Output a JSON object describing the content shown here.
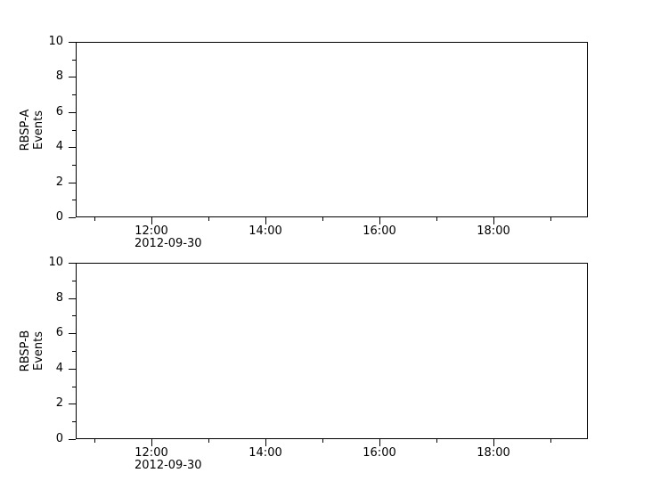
{
  "page": {
    "background": "#ffffff",
    "foreground": "#000000"
  },
  "chart_data": [
    {
      "type": "line",
      "panel_id": "rbsp-a",
      "ylabel_lines": [
        "RBSP-A",
        "Events"
      ],
      "ylim": [
        0,
        10
      ],
      "y_major_ticks": [
        0,
        2,
        4,
        6,
        8,
        10
      ],
      "y_minor_ticks": [
        1,
        3,
        5,
        7,
        9
      ],
      "grid": false,
      "x_axis": {
        "date_label": "2012-09-30",
        "start_hour": 10.67,
        "end_hour": 19.65,
        "major_ticks": [
          {
            "hour": 12,
            "label": "12:00"
          },
          {
            "hour": 14,
            "label": "14:00"
          },
          {
            "hour": 16,
            "label": "16:00"
          },
          {
            "hour": 18,
            "label": "18:00"
          }
        ],
        "minor_tick_hours": [
          11,
          13,
          15,
          17,
          19
        ]
      },
      "series": []
    },
    {
      "type": "line",
      "panel_id": "rbsp-b",
      "ylabel_lines": [
        "RBSP-B",
        "Events"
      ],
      "ylim": [
        0,
        10
      ],
      "y_major_ticks": [
        0,
        2,
        4,
        6,
        8,
        10
      ],
      "y_minor_ticks": [
        1,
        3,
        5,
        7,
        9
      ],
      "grid": false,
      "x_axis": {
        "date_label": "2012-09-30",
        "start_hour": 10.67,
        "end_hour": 19.65,
        "major_ticks": [
          {
            "hour": 12,
            "label": "12:00"
          },
          {
            "hour": 14,
            "label": "14:00"
          },
          {
            "hour": 16,
            "label": "16:00"
          },
          {
            "hour": 18,
            "label": "18:00"
          }
        ],
        "minor_tick_hours": [
          11,
          13,
          15,
          17,
          19
        ]
      },
      "series": []
    }
  ]
}
